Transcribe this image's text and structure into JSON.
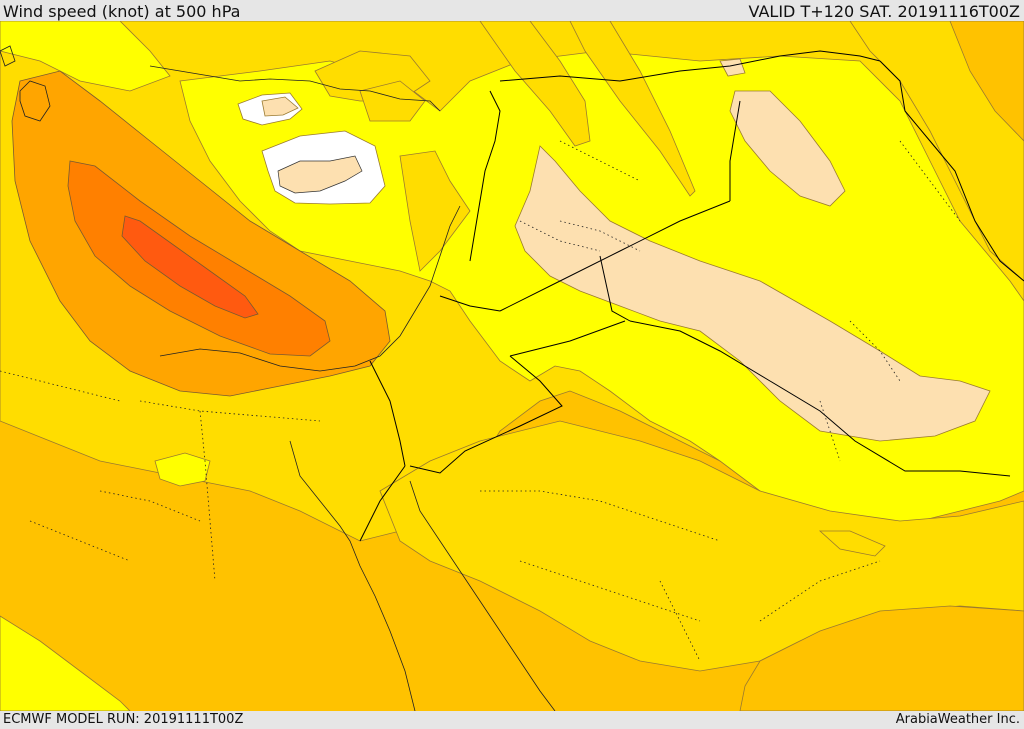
{
  "header": {
    "title": "Wind speed (knot) at 500 hPa",
    "valid": "VALID T+120 SAT. 20191116T00Z"
  },
  "footer": {
    "run": "ECMWF MODEL RUN: 20191111T00Z",
    "credit": "ArabiaWeather Inc."
  },
  "legend_colors": {
    "pale": "#fde0b0",
    "white": "#ffffff",
    "yellow": "#ffff00",
    "gold": "#ffdd00",
    "amber": "#ffc200",
    "orange_light": "#ffa500",
    "orange": "#ff8000",
    "orange_dark": "#ff5a10"
  }
}
